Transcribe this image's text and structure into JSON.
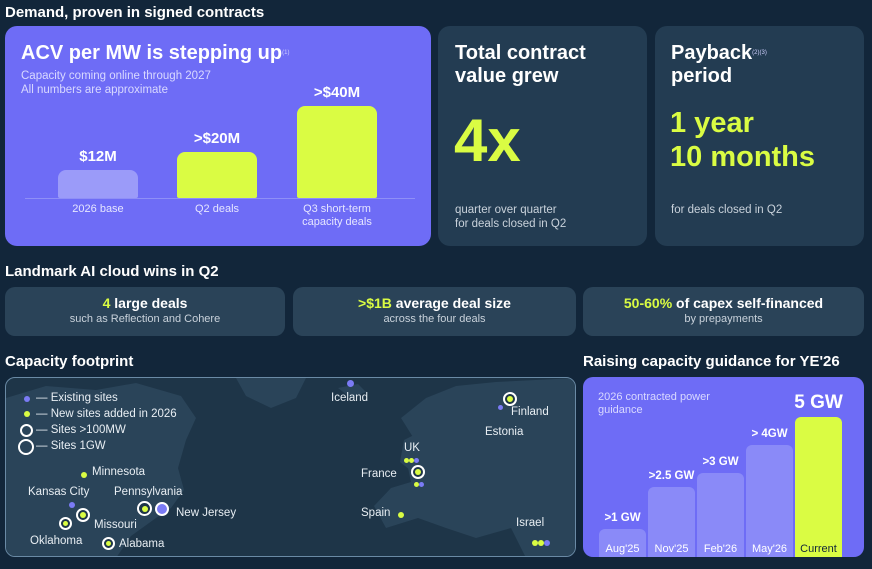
{
  "heading_demand": "Demand, proven in signed contracts",
  "acv": {
    "title": "ACV per MW is stepping up",
    "footnote": "(1)",
    "subtitle_1": "Capacity coming online through 2027",
    "subtitle_2": "All numbers are approximate",
    "chart_data": {
      "type": "bar",
      "categories": [
        "2026 base",
        "Q2 deals",
        "Q3 short-term capacity deals"
      ],
      "values": [
        12,
        20,
        40
      ],
      "value_labels": [
        "$12M",
        ">$20M",
        ">$40M"
      ],
      "category_lines": [
        [
          "2026 base"
        ],
        [
          "Q2 deals"
        ],
        [
          "Q3 short-term",
          "capacity deals"
        ]
      ],
      "colors": [
        "#9b9bf9",
        "#dafc43",
        "#dafc43"
      ],
      "ylim": [
        0,
        40
      ]
    }
  },
  "tcv": {
    "title_1": "Total contract",
    "title_2": "value grew",
    "value": "4x",
    "caption_1": "quarter over quarter",
    "caption_2": "for deals closed in Q2"
  },
  "payback": {
    "title_1": "Payback",
    "title_2": "period",
    "footnote": "(2)(3)",
    "value_1": "1 year",
    "value_2": "10 months",
    "caption": "for deals closed in Q2"
  },
  "heading_wins": "Landmark AI cloud wins in Q2",
  "wins": [
    {
      "highlight": "4",
      "rest": " large deals",
      "sub": "such as Reflection and Cohere"
    },
    {
      "highlight": ">$1B",
      "rest": " average deal size",
      "sub": "across the four deals"
    },
    {
      "highlight": "50-60%",
      "rest": " of capex self-financed",
      "sub": "by prepayments"
    }
  ],
  "heading_footprint": "Capacity footprint",
  "legend": [
    {
      "label": "Existing sites",
      "type": "existing"
    },
    {
      "label": "New sites added in 2026",
      "type": "new"
    },
    {
      "label": "Sites >100MW",
      "type": "ring-small"
    },
    {
      "label": "Sites 1GW",
      "type": "ring-large"
    }
  ],
  "places": {
    "iceland": "Iceland",
    "finland": "Finland",
    "estonia": "Estonia",
    "uk": "UK",
    "france": "France",
    "spain": "Spain",
    "israel": "Israel",
    "minnesota": "Minnesota",
    "kansas_city": "Kansas City",
    "pennsylvania": "Pennsylvania",
    "new_jersey": "New Jersey",
    "missouri": "Missouri",
    "oklahoma": "Oklahoma",
    "alabama": "Alabama"
  },
  "heading_guidance": "Raising capacity guidance for YE'26",
  "guidance": {
    "subtitle_1": "2026 contracted power",
    "subtitle_2": "guidance",
    "chart_data": {
      "type": "bar",
      "categories": [
        "Aug'25",
        "Nov'25",
        "Feb'26",
        "May'26",
        "Current"
      ],
      "values": [
        1,
        2.5,
        3,
        4,
        5
      ],
      "value_labels": [
        ">1 GW",
        ">2.5 GW",
        ">3 GW",
        "> 4GW",
        "5 GW"
      ],
      "ylim": [
        0,
        5
      ],
      "colors": [
        "#8a8af8",
        "#8a8af8",
        "#8a8af8",
        "#8a8af8",
        "#dafc43"
      ]
    }
  }
}
